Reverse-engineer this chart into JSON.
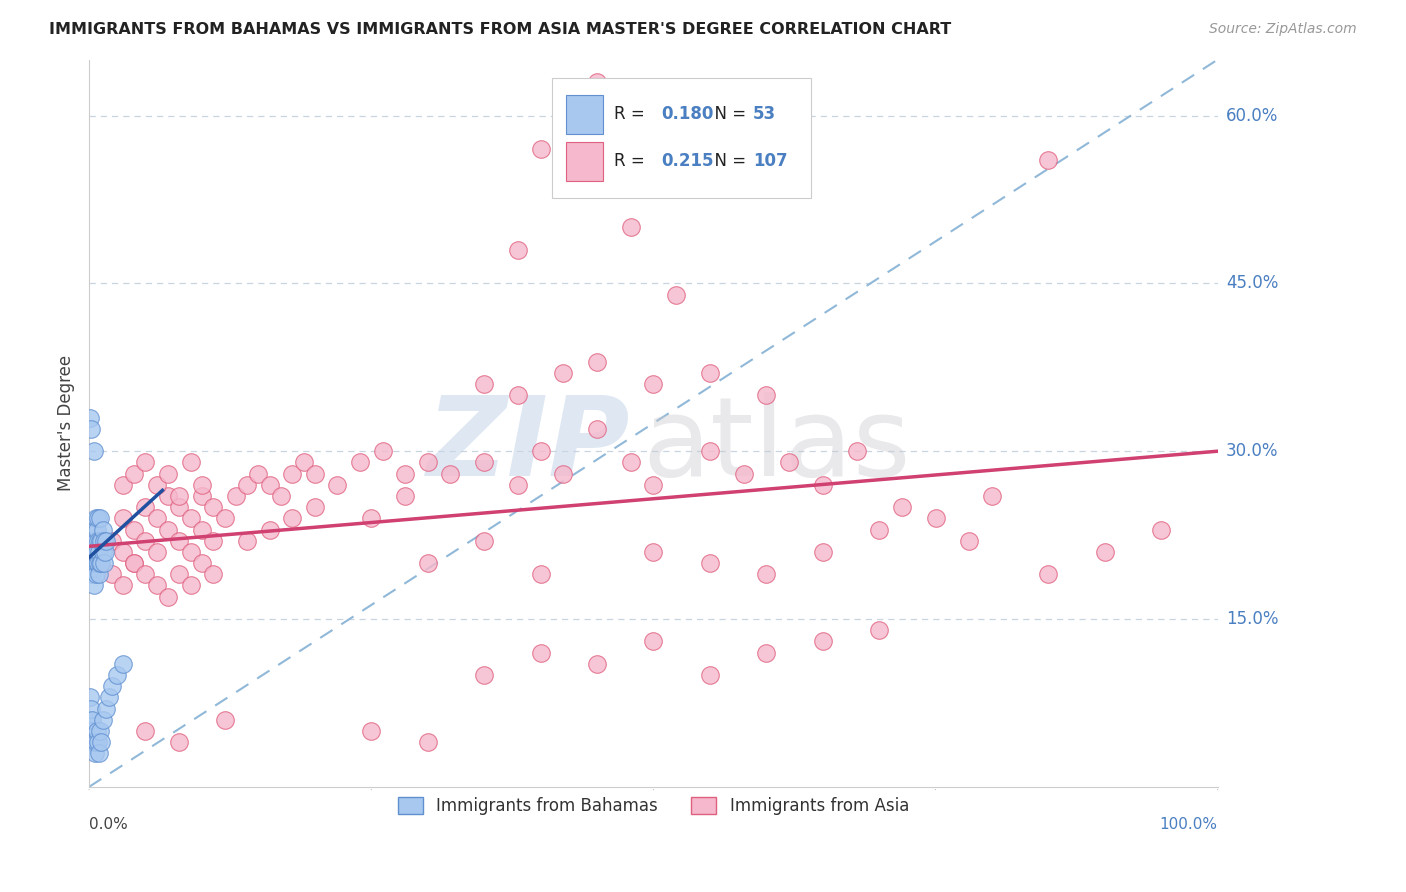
{
  "title": "IMMIGRANTS FROM BAHAMAS VS IMMIGRANTS FROM ASIA MASTER'S DEGREE CORRELATION CHART",
  "source": "Source: ZipAtlas.com",
  "ylabel": "Master's Degree",
  "legend_R_blue": "0.180",
  "legend_N_blue": "53",
  "legend_R_pink": "0.215",
  "legend_N_pink": "107",
  "blue_fill": "#a8c8f0",
  "blue_edge": "#6090d0",
  "pink_fill": "#f5b8cc",
  "pink_edge": "#e06080",
  "blue_line_color": "#2050a0",
  "pink_line_color": "#d04070",
  "ref_line_color": "#90b8d8",
  "grid_color": "#c8d4e0",
  "ytick_color": "#4a7fc1",
  "xlim": [
    0.0,
    1.0
  ],
  "ylim": [
    0.0,
    0.65
  ],
  "ytick_vals": [
    0.15,
    0.3,
    0.45,
    0.6
  ],
  "ytick_labels": [
    "15.0%",
    "30.0%",
    "45.0%",
    "60.0%"
  ],
  "pink_trend_x0": 0.0,
  "pink_trend_y0": 0.215,
  "pink_trend_x1": 1.0,
  "pink_trend_y1": 0.3,
  "blue_trend_x0": 0.0,
  "blue_trend_y0": 0.205,
  "blue_trend_x1": 0.065,
  "blue_trend_y1": 0.265,
  "watermark_zip_color": "#c5d5e8",
  "watermark_atlas_color": "#c8c8d0"
}
